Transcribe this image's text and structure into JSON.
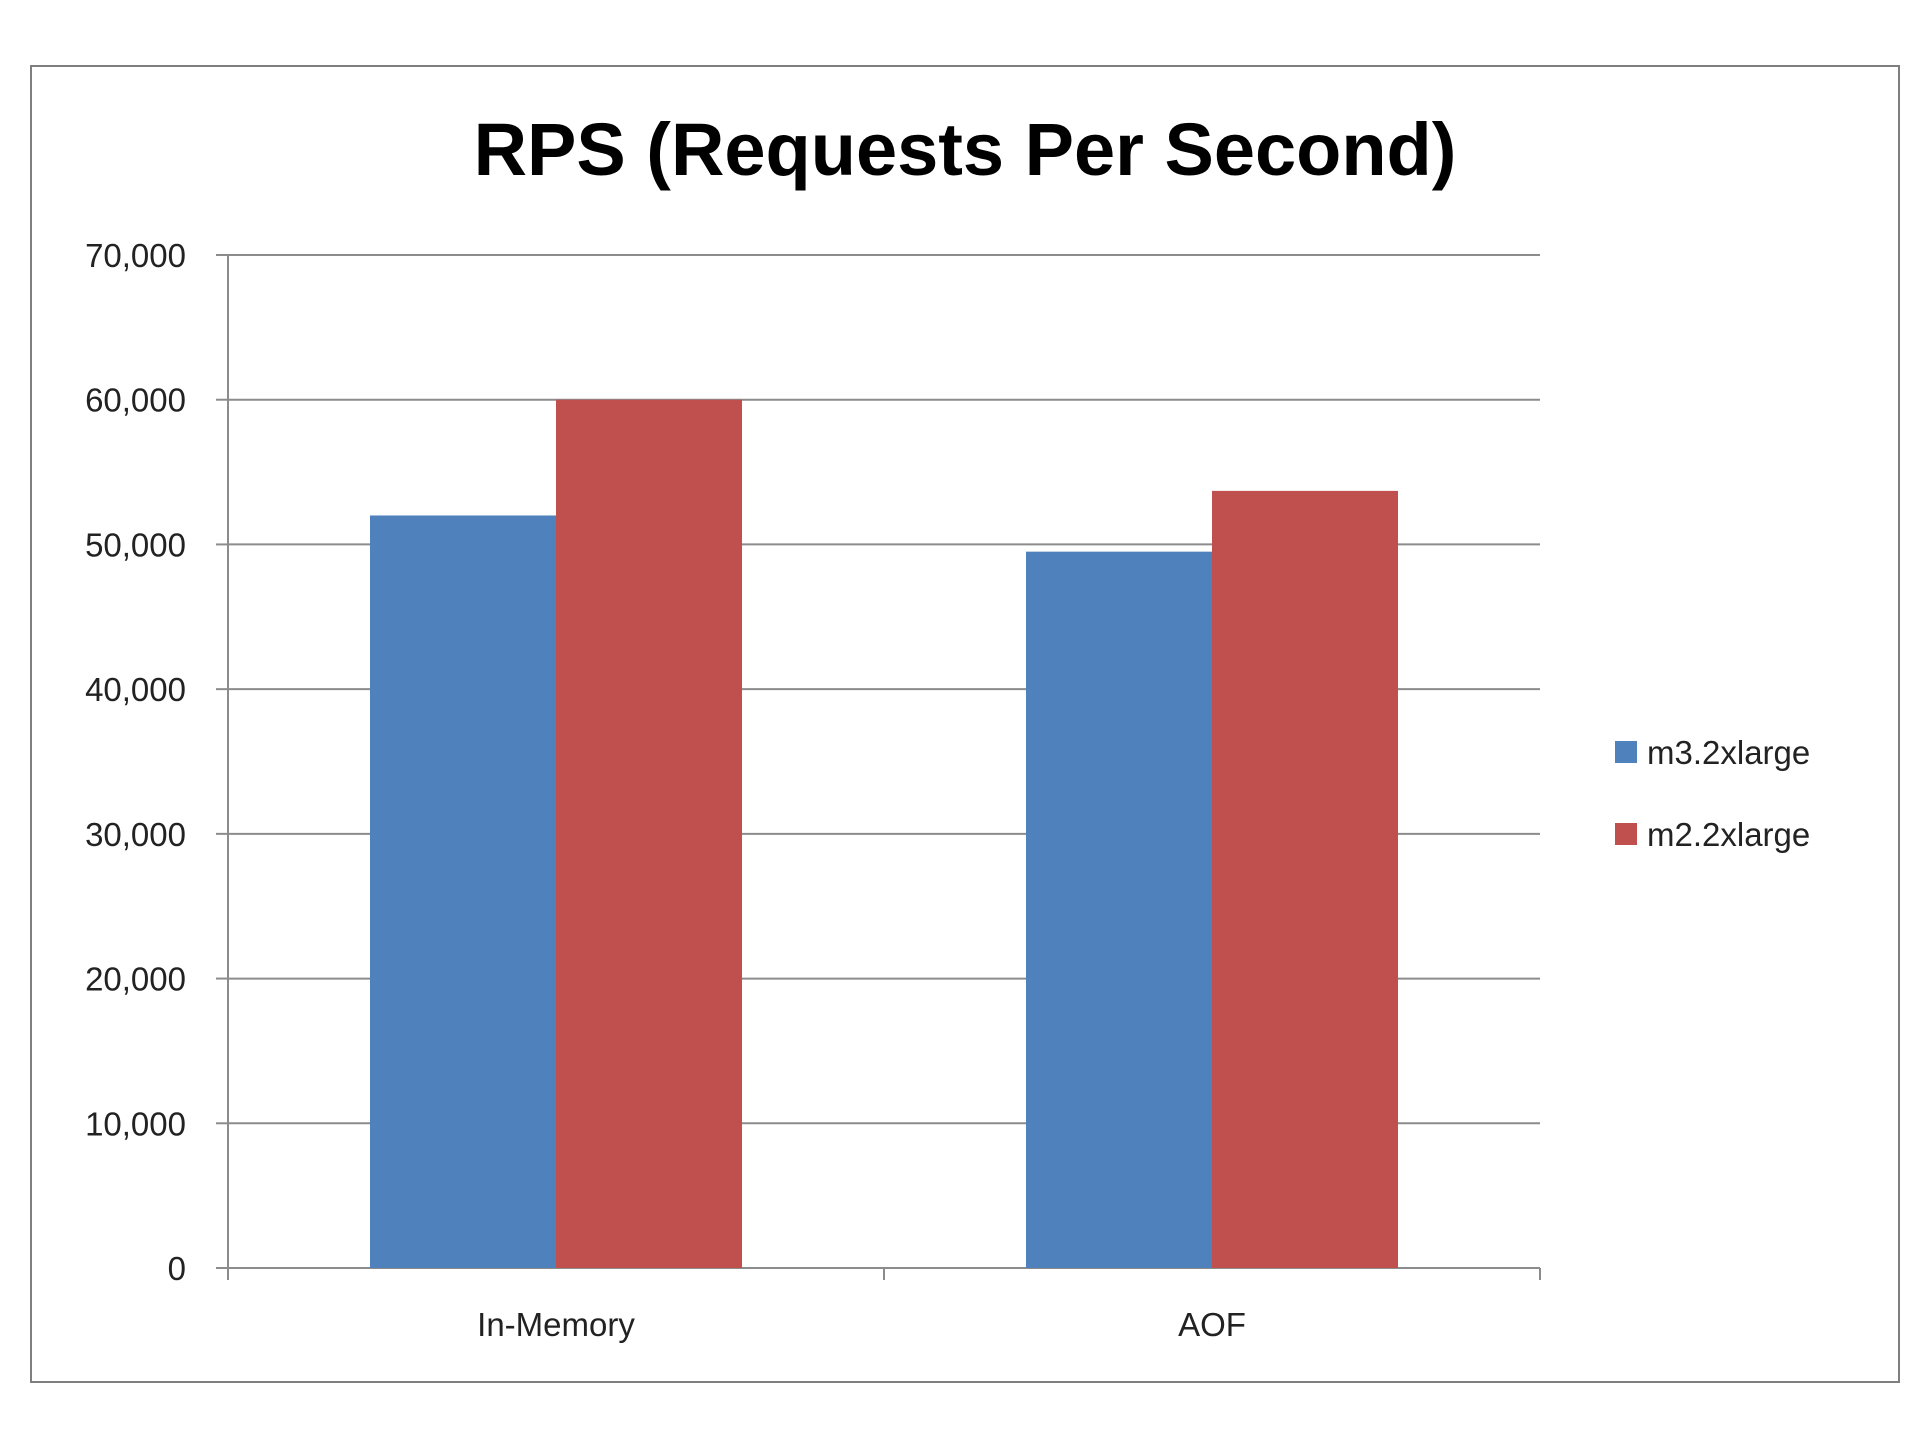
{
  "chart_data": {
    "type": "bar",
    "title": "RPS (Requests Per Second)",
    "xlabel": "",
    "ylabel": "",
    "categories": [
      "In-Memory",
      "AOF"
    ],
    "series": [
      {
        "name": "m3.2xlarge",
        "values": [
          52000,
          49500
        ],
        "color": "#4f81bd"
      },
      {
        "name": "m2.2xlarge",
        "values": [
          60000,
          53700
        ],
        "color": "#c0504d"
      }
    ],
    "ylim": [
      0,
      70000
    ],
    "yticks": [
      0,
      10000,
      20000,
      30000,
      40000,
      50000,
      60000,
      70000
    ],
    "ytick_labels": [
      "0",
      "10,000",
      "20,000",
      "30,000",
      "40,000",
      "50,000",
      "60,000",
      "70,000"
    ],
    "grid": true,
    "legend_position": "right"
  }
}
